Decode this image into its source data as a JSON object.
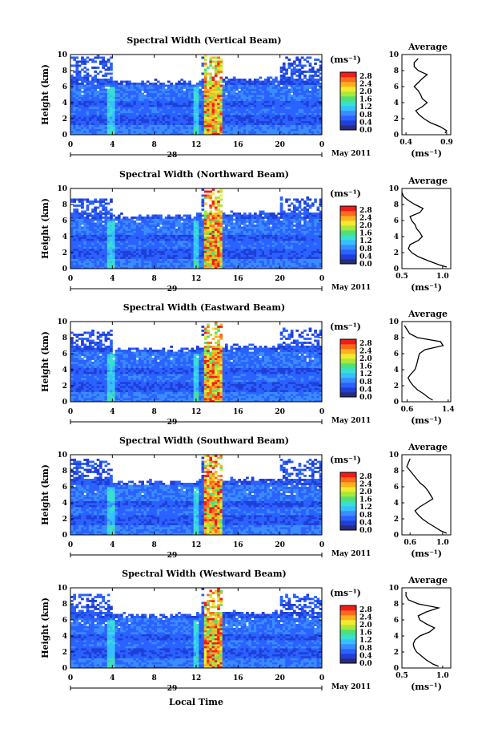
{
  "figure": {
    "month_label": "May 2011",
    "xlabel": "Local Time",
    "ylabel": "Height (km)",
    "average_title": "Average",
    "unit_label": "(ms⁻¹)",
    "colorbar_ticks": [
      "0.0",
      "0.4",
      "0.8",
      "1.2",
      "1.6",
      "2.0",
      "2.4",
      "2.8"
    ],
    "colormap": [
      "#2b2b7a",
      "#1f3fd8",
      "#2b62ff",
      "#3a8cff",
      "#36c0ff",
      "#38e0d0",
      "#4fe07a",
      "#a8e83a",
      "#f2ea2e",
      "#ffb020",
      "#ff6a1a",
      "#f21a1a"
    ],
    "x_ticks": [
      "0",
      "4",
      "8",
      "12",
      "16",
      "20",
      "0"
    ]
  },
  "chart_data": [
    {
      "type": "heatmap",
      "title": "Spectral Width (Vertical Beam)",
      "date_label": "28",
      "xlim": [
        0,
        24
      ],
      "ylim": [
        0,
        10
      ],
      "clim": [
        0,
        3.0
      ],
      "avg_xlim": [
        0.35,
        0.95
      ],
      "avg_xticks": [
        "0.4",
        "0.9"
      ],
      "average_profile": {
        "height": [
          0.2,
          0.5,
          1,
          1.5,
          2,
          2.5,
          3,
          3.5,
          4,
          4.5,
          5,
          5.5,
          6,
          6.5,
          7,
          7.5,
          8,
          8.5,
          9,
          9.5
        ],
        "value": [
          0.88,
          0.9,
          0.82,
          0.7,
          0.62,
          0.56,
          0.52,
          0.6,
          0.66,
          0.6,
          0.58,
          0.55,
          0.5,
          0.55,
          0.6,
          0.66,
          0.55,
          0.5,
          0.5,
          0.55
        ]
      }
    },
    {
      "type": "heatmap",
      "title": "Spectral Width (Northward Beam)",
      "date_label": "29",
      "xlim": [
        0,
        24
      ],
      "ylim": [
        0,
        10
      ],
      "clim": [
        0,
        3.0
      ],
      "avg_xlim": [
        0.5,
        1.1
      ],
      "avg_xticks": [
        "0.5",
        "1.0"
      ],
      "average_profile": {
        "height": [
          0.2,
          0.5,
          1,
          1.5,
          2,
          2.5,
          3,
          3.5,
          4,
          4.5,
          5,
          5.5,
          6,
          6.5,
          7,
          7.5,
          8,
          8.5,
          9,
          9.5
        ],
        "value": [
          1.05,
          0.95,
          0.82,
          0.7,
          0.62,
          0.58,
          0.6,
          0.7,
          0.75,
          0.72,
          0.68,
          0.66,
          0.62,
          0.6,
          0.72,
          0.76,
          0.66,
          0.58,
          0.52,
          0.5
        ]
      }
    },
    {
      "type": "heatmap",
      "title": "Spectral Width (Eastward Beam)",
      "date_label": "29",
      "xlim": [
        0,
        24
      ],
      "ylim": [
        0,
        10
      ],
      "clim": [
        0,
        3.0
      ],
      "avg_xlim": [
        0.5,
        1.45
      ],
      "avg_xticks": [
        "0.6",
        "1.4"
      ],
      "average_profile": {
        "height": [
          0.2,
          0.5,
          1,
          1.5,
          2,
          2.5,
          3,
          3.5,
          4,
          4.5,
          5,
          5.5,
          6,
          6.5,
          7,
          7.5,
          8,
          8.5,
          9,
          9.5
        ],
        "value": [
          1.1,
          1.02,
          0.92,
          0.8,
          0.72,
          0.66,
          0.62,
          0.68,
          0.75,
          0.78,
          0.8,
          0.82,
          0.84,
          0.95,
          1.3,
          1.25,
          0.8,
          0.65,
          0.6,
          0.55
        ]
      }
    },
    {
      "type": "heatmap",
      "title": "Spectral Width (Southward Beam)",
      "date_label": "29",
      "xlim": [
        0,
        24
      ],
      "ylim": [
        0,
        10
      ],
      "clim": [
        0,
        3.0
      ],
      "avg_xlim": [
        0.5,
        1.1
      ],
      "avg_xticks": [
        "0.6",
        "1.0"
      ],
      "average_profile": {
        "height": [
          0.2,
          0.5,
          1,
          1.5,
          2,
          2.5,
          3,
          3.5,
          4,
          4.5,
          5,
          5.5,
          6,
          6.5,
          7,
          7.5,
          8,
          8.5,
          9,
          9.5
        ],
        "value": [
          1.05,
          0.98,
          0.9,
          0.82,
          0.75,
          0.7,
          0.66,
          0.72,
          0.8,
          0.88,
          0.85,
          0.82,
          0.78,
          0.72,
          0.68,
          0.64,
          0.6,
          0.56,
          0.58,
          0.6
        ]
      }
    },
    {
      "type": "heatmap",
      "title": "Spectral Width (Westward Beam)",
      "date_label": "29",
      "xlim": [
        0,
        24
      ],
      "ylim": [
        0,
        10
      ],
      "clim": [
        0,
        3.0
      ],
      "avg_xlim": [
        0.5,
        1.1
      ],
      "avg_xticks": [
        "0.5",
        "1.0"
      ],
      "average_profile": {
        "height": [
          0.2,
          0.5,
          1,
          1.5,
          2,
          2.5,
          3,
          3.5,
          4,
          4.5,
          5,
          5.5,
          6,
          6.5,
          7,
          7.5,
          8,
          8.5,
          9,
          9.5
        ],
        "value": [
          0.95,
          0.88,
          0.8,
          0.74,
          0.68,
          0.65,
          0.64,
          0.66,
          0.72,
          0.84,
          0.9,
          0.8,
          0.72,
          0.7,
          0.8,
          0.95,
          0.7,
          0.58,
          0.55,
          0.55
        ]
      }
    }
  ]
}
